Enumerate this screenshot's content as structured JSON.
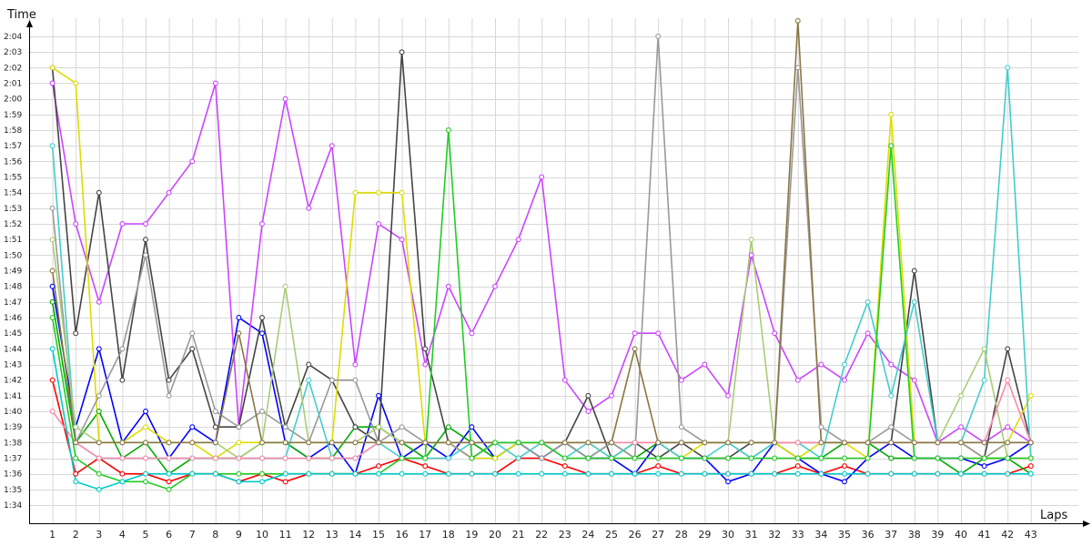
{
  "chart_data": {
    "type": "line",
    "title": "",
    "xlabel": "Laps",
    "ylabel": "Time",
    "x_ticks": [
      "1",
      "2",
      "3",
      "4",
      "5",
      "6",
      "7",
      "8",
      "9",
      "10",
      "11",
      "12",
      "13",
      "14",
      "15",
      "16",
      "17",
      "18",
      "19",
      "20",
      "21",
      "22",
      "23",
      "24",
      "25",
      "26",
      "27",
      "28",
      "29",
      "30",
      "31",
      "32",
      "33",
      "34",
      "35",
      "36",
      "37",
      "38",
      "39",
      "40",
      "41",
      "42",
      "43"
    ],
    "y_ticks": [
      "1:34",
      "1:35",
      "1:36",
      "1:37",
      "1:38",
      "1:39",
      "1:40",
      "1:41",
      "1:42",
      "1:43",
      "1:44",
      "1:45",
      "1:46",
      "1:47",
      "1:48",
      "1:49",
      "1:50",
      "1:51",
      "1:52",
      "1:53",
      "1:54",
      "1:55",
      "1:56",
      "1:57",
      "1:58",
      "1:59",
      "2:00",
      "2:01",
      "2:02",
      "2:03",
      "2:04"
    ],
    "xlim": [
      0,
      43
    ],
    "ylim_seconds": [
      93,
      125
    ],
    "grid": true,
    "legend": "none",
    "series": [
      {
        "color": "#ff0000",
        "values": [
          102,
          96,
          97,
          96,
          96,
          95.5,
          96,
          96,
          95.5,
          96,
          95.5,
          96,
          96,
          96,
          96.5,
          97,
          96.5,
          96,
          96,
          96,
          97,
          97,
          96.5,
          96,
          96,
          96,
          96.5,
          96,
          96,
          96,
          96,
          96,
          96.5,
          96,
          96.5,
          96,
          96,
          96,
          96,
          96,
          96,
          96,
          96.5
        ]
      },
      {
        "color": "#0000ff",
        "values": [
          108,
          99,
          104,
          98,
          100,
          97,
          99,
          98,
          106,
          105,
          98,
          97,
          98,
          96,
          101,
          97,
          98,
          97,
          99,
          97,
          98,
          97,
          98,
          97,
          97,
          96,
          98,
          97,
          97,
          95.5,
          96,
          98,
          97,
          96,
          95.5,
          97,
          98,
          97,
          97,
          97,
          96.5,
          97,
          98
        ]
      },
      {
        "color": "#00aa00",
        "values": [
          107,
          98,
          100,
          97,
          98,
          96,
          97,
          97,
          97,
          98,
          98,
          97,
          97,
          99,
          99,
          98,
          97,
          99,
          98,
          97,
          98,
          98,
          98,
          97,
          98,
          97,
          98,
          98,
          98,
          98,
          98,
          98,
          97,
          97,
          98,
          98,
          97,
          97,
          97,
          96,
          97,
          97,
          96
        ]
      },
      {
        "color": "#cc44ff",
        "values": [
          121,
          112,
          107,
          112,
          112,
          114,
          116,
          121,
          99,
          112,
          120,
          113,
          117,
          103,
          112,
          111,
          103,
          108,
          105,
          108,
          111,
          115,
          102,
          100,
          101,
          105,
          105,
          102,
          103,
          101,
          110,
          105,
          102,
          103,
          102,
          105,
          103,
          102,
          98,
          99,
          98,
          99,
          98
        ]
      },
      {
        "color": "#444444",
        "values": [
          122,
          105,
          114,
          102,
          111,
          102,
          104,
          99,
          99,
          106,
          99,
          103,
          102,
          99,
          98,
          123,
          104,
          98,
          97,
          98,
          98,
          97,
          98,
          101,
          97,
          98,
          97,
          98,
          97,
          97,
          98,
          98,
          98,
          98,
          98,
          98,
          98,
          109,
          98,
          98,
          97,
          104,
          98
        ]
      },
      {
        "color": "#dddd00",
        "values": [
          122,
          121,
          98,
          98,
          99,
          98,
          98,
          97,
          98,
          98,
          98,
          98,
          98,
          114,
          114,
          114,
          98,
          98,
          97,
          97,
          98,
          98,
          98,
          98,
          97,
          98,
          98,
          97,
          98,
          98,
          98,
          98,
          97,
          98,
          98,
          97,
          119,
          98,
          98,
          98,
          97,
          98,
          101
        ]
      },
      {
        "color": "#999999",
        "values": [
          113,
          98,
          101,
          104,
          110,
          101,
          105,
          100,
          99,
          100,
          99,
          98,
          102,
          102,
          98,
          99,
          98,
          98,
          97,
          98,
          98,
          97,
          98,
          97,
          98,
          97,
          124,
          99,
          98,
          98,
          97,
          98,
          122,
          99,
          98,
          98,
          99,
          98,
          98,
          98,
          97,
          98,
          98
        ]
      },
      {
        "color": "#44cccc",
        "values": [
          117,
          98,
          97,
          97,
          97,
          97,
          97,
          97,
          97,
          97,
          97,
          102,
          97,
          97,
          98,
          97,
          97,
          97,
          98,
          98,
          97,
          98,
          97,
          98,
          97,
          98,
          98,
          97,
          97,
          98,
          97,
          98,
          98,
          97,
          103,
          107,
          101,
          107,
          98,
          98,
          102,
          122,
          97
        ]
      },
      {
        "color": "#aacc77",
        "values": [
          111,
          99,
          98,
          98,
          98,
          98,
          98,
          98,
          97,
          98,
          108,
          98,
          98,
          98,
          99,
          98,
          98,
          98,
          98,
          98,
          98,
          98,
          98,
          98,
          98,
          98,
          98,
          98,
          98,
          98,
          111,
          98,
          98,
          98,
          98,
          98,
          98,
          98,
          98,
          101,
          104,
          97,
          97
        ]
      },
      {
        "color": "#ff88aa",
        "values": [
          100,
          98,
          97,
          97,
          97,
          97,
          97,
          97,
          97,
          97,
          97,
          97,
          97,
          97,
          98,
          98,
          98,
          98,
          98,
          98,
          98,
          98,
          98,
          98,
          98,
          98,
          98,
          98,
          98,
          98,
          98,
          98,
          98,
          98,
          98,
          98,
          98,
          98,
          98,
          98,
          98,
          102,
          98
        ]
      },
      {
        "color": "#887744",
        "values": [
          109,
          98,
          98,
          98,
          98,
          98,
          98,
          98,
          105,
          98,
          98,
          98,
          98,
          98,
          98,
          98,
          98,
          98,
          98,
          98,
          98,
          98,
          98,
          98,
          98,
          104,
          98,
          98,
          98,
          98,
          98,
          98,
          125,
          98,
          98,
          98,
          98,
          98,
          98,
          98,
          98,
          98,
          98
        ]
      },
      {
        "color": "#22cc22",
        "values": [
          106,
          97,
          96,
          95.5,
          95.5,
          95,
          96,
          96,
          96,
          96,
          96,
          96,
          96,
          96,
          96,
          97,
          97,
          118,
          97,
          98,
          98,
          98,
          97,
          97,
          97,
          97,
          97,
          97,
          97,
          97,
          97,
          97,
          97,
          97,
          97,
          97,
          117,
          97,
          97,
          97,
          97,
          97,
          97
        ]
      },
      {
        "color": "#00cccc",
        "values": [
          104,
          95.5,
          95,
          95.5,
          96,
          96,
          96,
          96,
          95.5,
          95.5,
          96,
          96,
          96,
          96,
          96,
          96,
          96,
          96,
          96,
          96,
          96,
          96,
          96,
          96,
          96,
          96,
          96,
          96,
          96,
          96,
          96,
          96,
          96,
          96,
          96,
          96,
          96,
          96,
          96,
          96,
          96,
          96,
          96
        ]
      }
    ]
  }
}
